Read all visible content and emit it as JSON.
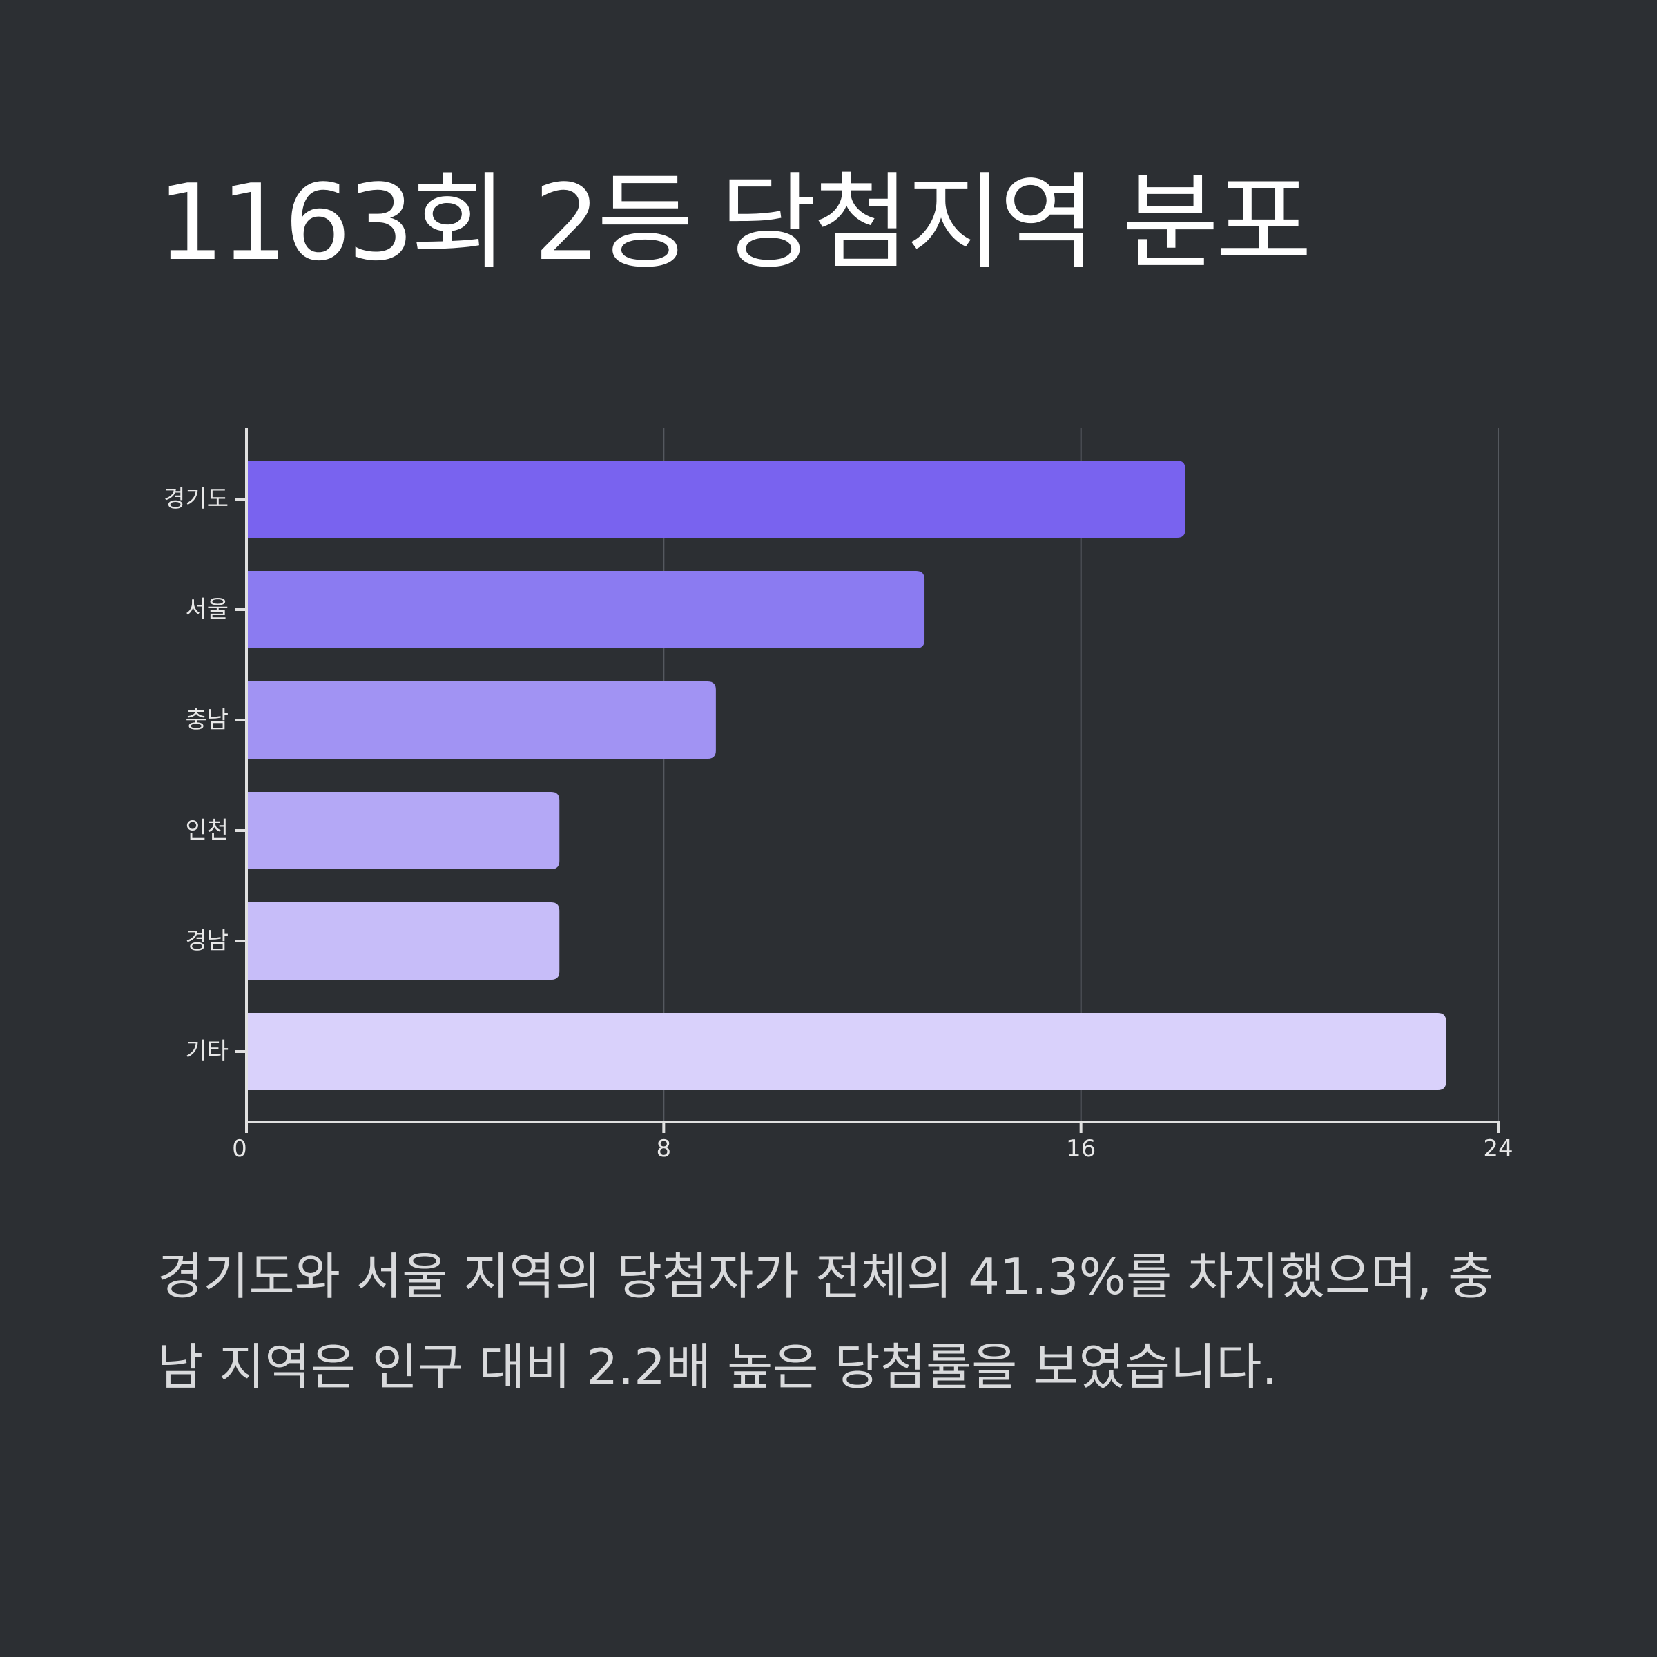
{
  "title": "1163회 2등 당첨지역 분포",
  "description": "경기도와 서울 지역의 당첨자가 전체의 41.3%를 차지했으며, 충남 지역은 인구 대비 2.2배 높은 당첨률을 보였습니다.",
  "chart_data": {
    "type": "bar",
    "orientation": "horizontal",
    "categories": [
      "경기도",
      "서울",
      "충남",
      "인천",
      "경남",
      "기타"
    ],
    "values": [
      18,
      13,
      9,
      6,
      6,
      23
    ],
    "colors": [
      "#7963ef",
      "#8b7bf1",
      "#a193f3",
      "#b4a8f6",
      "#c7bdf9",
      "#d9d1fb"
    ],
    "xlim": [
      0,
      24
    ],
    "xticks": [
      "0",
      "8",
      "16",
      "24"
    ],
    "grid": true,
    "axis_color": "#e0e0e0",
    "grid_color": "#55595f",
    "label_color": "#e8e8e8"
  }
}
